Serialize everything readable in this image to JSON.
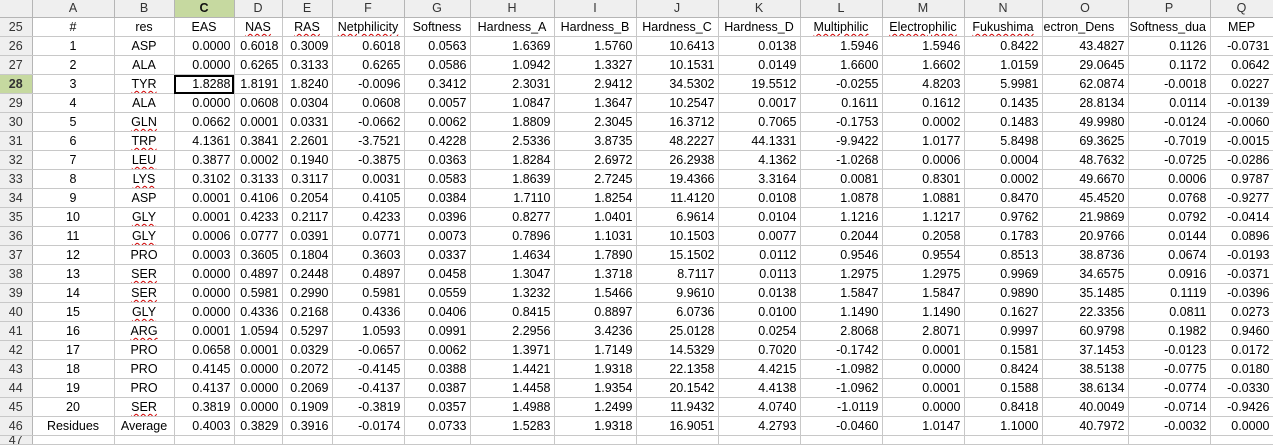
{
  "columns": [
    "A",
    "B",
    "C",
    "D",
    "E",
    "F",
    "G",
    "H",
    "I",
    "J",
    "K",
    "L",
    "M",
    "N",
    "O",
    "P",
    "Q"
  ],
  "selected_column": "C",
  "selected_row": "28",
  "rows": [
    {
      "n": "25",
      "c": [
        "#",
        "res",
        "EAS",
        "NAS",
        "RAS",
        "Netphilicity",
        "Softness",
        "Hardness_A",
        "Hardness_B",
        "Hardness_C",
        "Hardness_D",
        "Multiphilic",
        "Electrophilic",
        "Fukushima",
        "ectron_Dens",
        "Softness_dua",
        "MEP"
      ]
    },
    {
      "n": "26",
      "c": [
        "1",
        "ASP",
        "0.0000",
        "0.6018",
        "0.3009",
        "0.6018",
        "0.0563",
        "1.6369",
        "1.5760",
        "10.6413",
        "0.0138",
        "1.5946",
        "1.5946",
        "0.8422",
        "43.4827",
        "0.1126",
        "-0.0731"
      ]
    },
    {
      "n": "27",
      "c": [
        "2",
        "ALA",
        "0.0000",
        "0.6265",
        "0.3133",
        "0.6265",
        "0.0586",
        "1.0942",
        "1.3327",
        "10.1531",
        "0.0149",
        "1.6600",
        "1.6602",
        "1.0159",
        "29.0645",
        "0.1172",
        "0.0642"
      ]
    },
    {
      "n": "28",
      "c": [
        "3",
        "TYR",
        "1.8288",
        "1.8191",
        "1.8240",
        "-0.0096",
        "0.3412",
        "2.3031",
        "2.9412",
        "34.5302",
        "19.5512",
        "-0.0255",
        "4.8203",
        "5.9981",
        "62.0874",
        "-0.0018",
        "0.0227"
      ]
    },
    {
      "n": "29",
      "c": [
        "4",
        "ALA",
        "0.0000",
        "0.0608",
        "0.0304",
        "0.0608",
        "0.0057",
        "1.0847",
        "1.3647",
        "10.2547",
        "0.0017",
        "0.1611",
        "0.1612",
        "0.1435",
        "28.8134",
        "0.0114",
        "-0.0139"
      ]
    },
    {
      "n": "30",
      "c": [
        "5",
        "GLN",
        "0.0662",
        "0.0001",
        "0.0331",
        "-0.0662",
        "0.0062",
        "1.8809",
        "2.3045",
        "16.3712",
        "0.7065",
        "-0.1753",
        "0.0002",
        "0.1483",
        "49.9980",
        "-0.0124",
        "-0.0060"
      ]
    },
    {
      "n": "31",
      "c": [
        "6",
        "TRP",
        "4.1361",
        "0.3841",
        "2.2601",
        "-3.7521",
        "0.4228",
        "2.5336",
        "3.8735",
        "48.2227",
        "44.1331",
        "-9.9422",
        "1.0177",
        "5.8498",
        "69.3625",
        "-0.7019",
        "-0.0015"
      ]
    },
    {
      "n": "32",
      "c": [
        "7",
        "LEU",
        "0.3877",
        "0.0002",
        "0.1940",
        "-0.3875",
        "0.0363",
        "1.8284",
        "2.6972",
        "26.2938",
        "4.1362",
        "-1.0268",
        "0.0006",
        "0.0004",
        "48.7632",
        "-0.0725",
        "-0.0286"
      ]
    },
    {
      "n": "33",
      "c": [
        "8",
        "LYS",
        "0.3102",
        "0.3133",
        "0.3117",
        "0.0031",
        "0.0583",
        "1.8639",
        "2.7245",
        "19.4366",
        "3.3164",
        "0.0081",
        "0.8301",
        "0.0002",
        "49.6670",
        "0.0006",
        "0.9787"
      ]
    },
    {
      "n": "34",
      "c": [
        "9",
        "ASP",
        "0.0001",
        "0.4106",
        "0.2054",
        "0.4105",
        "0.0384",
        "1.7110",
        "1.8254",
        "11.4120",
        "0.0108",
        "1.0878",
        "1.0881",
        "0.8470",
        "45.4520",
        "0.0768",
        "-0.9277"
      ]
    },
    {
      "n": "35",
      "c": [
        "10",
        "GLY",
        "0.0001",
        "0.4233",
        "0.2117",
        "0.4233",
        "0.0396",
        "0.8277",
        "1.0401",
        "6.9614",
        "0.0104",
        "1.1216",
        "1.1217",
        "0.9762",
        "21.9869",
        "0.0792",
        "-0.0414"
      ]
    },
    {
      "n": "36",
      "c": [
        "11",
        "GLY",
        "0.0006",
        "0.0777",
        "0.0391",
        "0.0771",
        "0.0073",
        "0.7896",
        "1.1031",
        "10.1503",
        "0.0077",
        "0.2044",
        "0.2058",
        "0.1783",
        "20.9766",
        "0.0144",
        "0.0896"
      ]
    },
    {
      "n": "37",
      "c": [
        "12",
        "PRO",
        "0.0003",
        "0.3605",
        "0.1804",
        "0.3603",
        "0.0337",
        "1.4634",
        "1.7890",
        "15.1502",
        "0.0112",
        "0.9546",
        "0.9554",
        "0.8513",
        "38.8736",
        "0.0674",
        "-0.0193"
      ]
    },
    {
      "n": "38",
      "c": [
        "13",
        "SER",
        "0.0000",
        "0.4897",
        "0.2448",
        "0.4897",
        "0.0458",
        "1.3047",
        "1.3718",
        "8.7117",
        "0.0113",
        "1.2975",
        "1.2975",
        "0.9969",
        "34.6575",
        "0.0916",
        "-0.0371"
      ]
    },
    {
      "n": "39",
      "c": [
        "14",
        "SER",
        "0.0000",
        "0.5981",
        "0.2990",
        "0.5981",
        "0.0559",
        "1.3232",
        "1.5466",
        "9.9610",
        "0.0138",
        "1.5847",
        "1.5847",
        "0.9890",
        "35.1485",
        "0.1119",
        "-0.0396"
      ]
    },
    {
      "n": "40",
      "c": [
        "15",
        "GLY",
        "0.0000",
        "0.4336",
        "0.2168",
        "0.4336",
        "0.0406",
        "0.8415",
        "0.8897",
        "6.0736",
        "0.0100",
        "1.1490",
        "1.1490",
        "0.1627",
        "22.3356",
        "0.0811",
        "0.0273"
      ]
    },
    {
      "n": "41",
      "c": [
        "16",
        "ARG",
        "0.0001",
        "1.0594",
        "0.5297",
        "1.0593",
        "0.0991",
        "2.2956",
        "3.4236",
        "25.0128",
        "0.0254",
        "2.8068",
        "2.8071",
        "0.9997",
        "60.9798",
        "0.1982",
        "0.9460"
      ]
    },
    {
      "n": "42",
      "c": [
        "17",
        "PRO",
        "0.0658",
        "0.0001",
        "0.0329",
        "-0.0657",
        "0.0062",
        "1.3971",
        "1.7149",
        "14.5329",
        "0.7020",
        "-0.1742",
        "0.0001",
        "0.1581",
        "37.1453",
        "-0.0123",
        "0.0172"
      ]
    },
    {
      "n": "43",
      "c": [
        "18",
        "PRO",
        "0.4145",
        "0.0000",
        "0.2072",
        "-0.4145",
        "0.0388",
        "1.4421",
        "1.9318",
        "22.1358",
        "4.4215",
        "-1.0982",
        "0.0000",
        "0.8424",
        "38.5138",
        "-0.0775",
        "0.0180"
      ]
    },
    {
      "n": "44",
      "c": [
        "19",
        "PRO",
        "0.4137",
        "0.0000",
        "0.2069",
        "-0.4137",
        "0.0387",
        "1.4458",
        "1.9354",
        "20.1542",
        "4.4138",
        "-1.0962",
        "0.0001",
        "0.1588",
        "38.6134",
        "-0.0774",
        "-0.0330"
      ]
    },
    {
      "n": "45",
      "c": [
        "20",
        "SER",
        "0.3819",
        "0.0000",
        "0.1909",
        "-0.3819",
        "0.0357",
        "1.4988",
        "1.2499",
        "11.9432",
        "4.0740",
        "-1.0119",
        "0.0000",
        "0.8418",
        "40.0049",
        "-0.0714",
        "-0.9426"
      ]
    },
    {
      "n": "46",
      "c": [
        "Residues",
        "Average",
        "0.4003",
        "0.3829",
        "0.3916",
        "-0.0174",
        "0.0733",
        "1.5283",
        "1.9318",
        "16.9051",
        "4.2793",
        "-0.0460",
        "1.0147",
        "1.1000",
        "40.7972",
        "-0.0032",
        "0.0000"
      ]
    },
    {
      "n": "47",
      "c": [
        "",
        "",
        "",
        "",
        "",
        "",
        "",
        "",
        "",
        "",
        "",
        "",
        "",
        "",
        "",
        "",
        ""
      ]
    }
  ]
}
